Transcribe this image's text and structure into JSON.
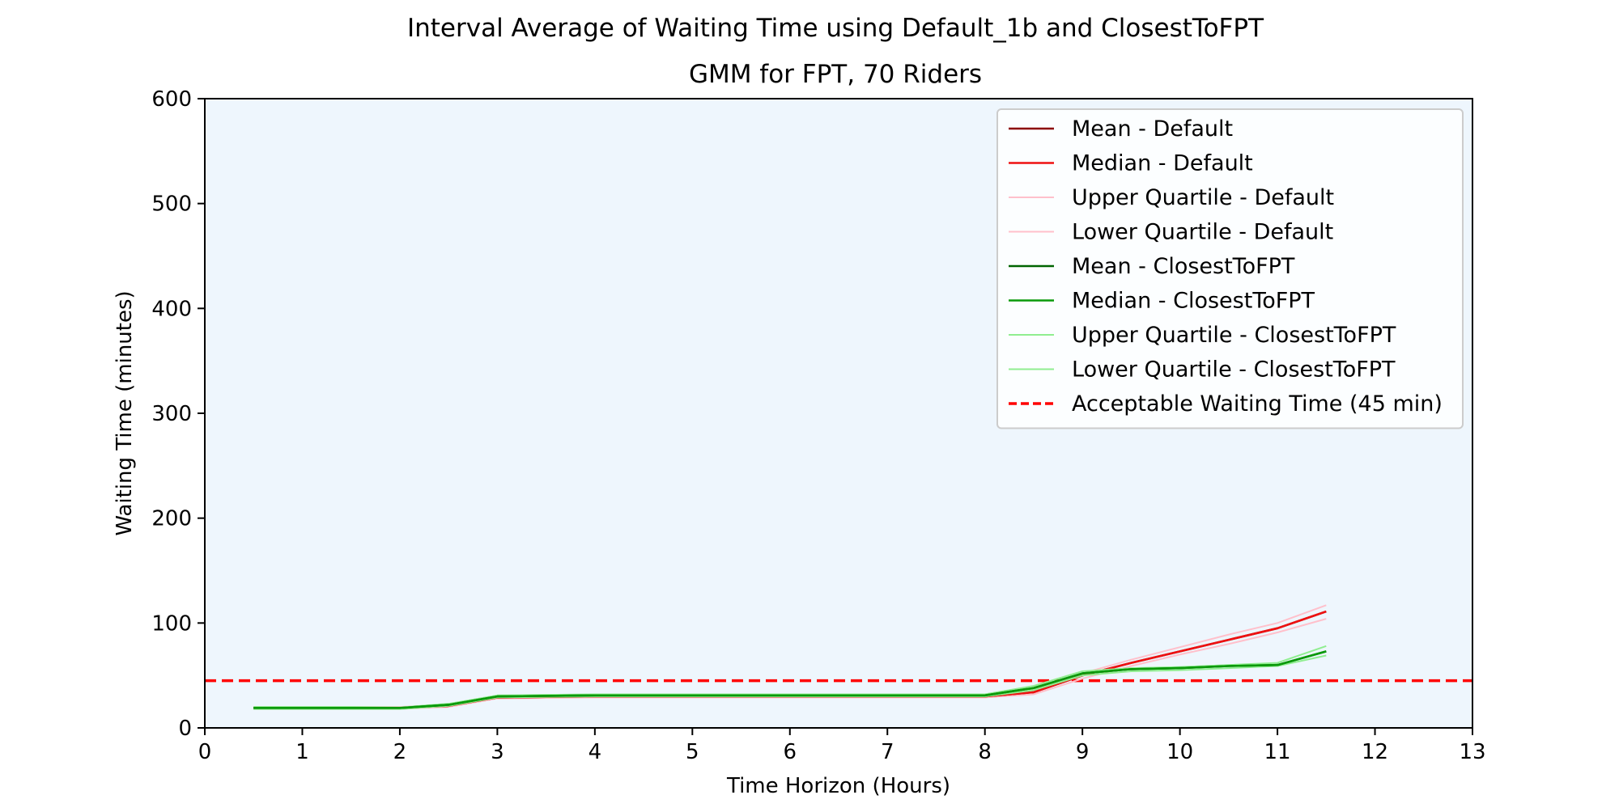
{
  "chart_data": {
    "type": "line",
    "title": "Interval Average of Waiting Time using Default_1b and ClosestToFPT",
    "subtitle": "GMM for FPT, 70 Riders",
    "xlabel": "Time Horizon (Hours)",
    "ylabel": "Waiting Time (minutes)",
    "xlim": [
      0,
      13
    ],
    "ylim": [
      0,
      600
    ],
    "xticks": [
      "0",
      "1",
      "2",
      "3",
      "4",
      "5",
      "6",
      "7",
      "8",
      "9",
      "10",
      "11",
      "12",
      "13"
    ],
    "yticks": [
      "0",
      "100",
      "200",
      "300",
      "400",
      "500",
      "600"
    ],
    "x": [
      0.5,
      1,
      1.5,
      2,
      2.5,
      3,
      3.5,
      4,
      4.5,
      5,
      5.5,
      6,
      6.5,
      7,
      7.5,
      8,
      8.5,
      9,
      9.5,
      10,
      10.5,
      11,
      11.5
    ],
    "series": [
      {
        "name": "Mean - Default",
        "color": "#8b0000",
        "width": 2.6,
        "values": [
          19,
          19,
          19,
          19,
          21,
          29,
          29.5,
          30,
          30,
          30,
          30,
          30,
          30,
          30,
          30,
          30,
          34,
          50,
          62,
          73,
          84,
          95,
          111
        ]
      },
      {
        "name": "Median - Default",
        "color": "#ee1111",
        "width": 2.6,
        "values": [
          19,
          19,
          19,
          19,
          21,
          29,
          29.5,
          30,
          30,
          30,
          30,
          30,
          30,
          30,
          30,
          30,
          34,
          50,
          62,
          73,
          84,
          95,
          111
        ]
      },
      {
        "name": "Upper Quartile - Default",
        "color": "#ffc0cb",
        "width": 2,
        "values": [
          20,
          20,
          20,
          20,
          22,
          30,
          30.5,
          31,
          31,
          31,
          31,
          31,
          31,
          31,
          31,
          31,
          36,
          52,
          65,
          77,
          89,
          100,
          117
        ]
      },
      {
        "name": "Lower Quartile - Default",
        "color": "#ffc0cb",
        "width": 2,
        "values": [
          18,
          18,
          18,
          18,
          20,
          28,
          28.5,
          29,
          29,
          29,
          29,
          29,
          29,
          29,
          29,
          29,
          32,
          47,
          59,
          70,
          80,
          91,
          104
        ]
      },
      {
        "name": "Mean - ClosestToFPT",
        "color": "#006400",
        "width": 2.6,
        "values": [
          19,
          19,
          19,
          19,
          22,
          30,
          30.5,
          31,
          31,
          31,
          31,
          31,
          31,
          31,
          31,
          31,
          38,
          52,
          56,
          57,
          59,
          60,
          73
        ]
      },
      {
        "name": "Median - ClosestToFPT",
        "color": "#0a9a0a",
        "width": 2.6,
        "values": [
          19,
          19,
          19,
          19,
          22,
          30,
          30.5,
          31,
          31,
          31,
          31,
          31,
          31,
          31,
          31,
          31,
          38,
          52,
          56,
          57,
          59,
          60,
          73
        ]
      },
      {
        "name": "Upper Quartile - ClosestToFPT",
        "color": "#90ee90",
        "width": 2,
        "values": [
          20,
          20,
          20,
          19.5,
          23,
          31,
          31.5,
          32,
          32,
          32,
          32,
          32,
          32,
          32,
          32,
          32,
          40,
          54,
          57,
          58,
          60,
          62,
          78
        ]
      },
      {
        "name": "Lower Quartile - ClosestToFPT",
        "color": "#90ee90",
        "width": 2,
        "values": [
          18,
          18,
          18,
          18,
          21,
          29,
          29.5,
          30,
          30,
          30,
          30,
          30,
          30,
          30,
          30,
          30,
          36,
          50,
          54,
          55,
          57,
          59,
          69
        ]
      }
    ],
    "threshold": {
      "name": "Acceptable Waiting Time (45 min)",
      "value": 45,
      "color": "#ff0000",
      "style": "dashed"
    },
    "legend_position": "top-right",
    "plot_background": "#eef6fd",
    "grid": false
  }
}
